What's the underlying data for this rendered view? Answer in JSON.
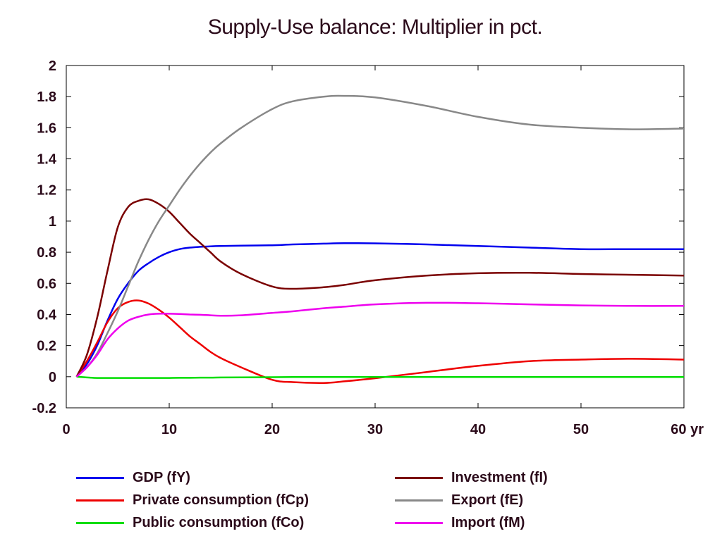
{
  "chart_data": {
    "type": "line",
    "title": "Supply-Use balance: Multiplier in pct.",
    "xlabel": "",
    "ylabel": "",
    "x_unit": "yr",
    "xlim": [
      0,
      60
    ],
    "ylim": [
      -0.2,
      2
    ],
    "x_ticks": [
      "0",
      "10",
      "20",
      "30",
      "40",
      "50",
      "60 yr"
    ],
    "y_ticks": [
      "2",
      "1.8",
      "1.6",
      "1.4",
      "1.2",
      "1",
      "0.8",
      "0.6",
      "0.4",
      "0.2",
      "0",
      "-0.2"
    ],
    "grid": false,
    "legend_position": "bottom",
    "x": [
      1,
      2,
      3,
      4,
      5,
      6,
      7,
      8,
      9,
      10,
      11,
      12,
      13,
      14,
      15,
      17,
      20,
      22,
      25,
      27,
      30,
      35,
      40,
      45,
      50,
      55,
      60
    ],
    "series": [
      {
        "name": "GDP (fY)",
        "color": "#0000ee",
        "values": [
          0.0,
          0.08,
          0.2,
          0.36,
          0.5,
          0.6,
          0.68,
          0.73,
          0.77,
          0.8,
          0.82,
          0.83,
          0.835,
          0.838,
          0.84,
          0.842,
          0.845,
          0.85,
          0.855,
          0.858,
          0.857,
          0.85,
          0.84,
          0.83,
          0.82,
          0.82,
          0.82
        ]
      },
      {
        "name": "Private consumption (fCp)",
        "color": "#ee0000",
        "values": [
          0.0,
          0.1,
          0.22,
          0.35,
          0.44,
          0.48,
          0.49,
          0.47,
          0.43,
          0.38,
          0.32,
          0.26,
          0.21,
          0.16,
          0.12,
          0.06,
          -0.02,
          -0.035,
          -0.04,
          -0.03,
          -0.01,
          0.03,
          0.07,
          0.1,
          0.11,
          0.115,
          0.11
        ]
      },
      {
        "name": "Public consumption (fCo)",
        "color": "#00dd00",
        "values": [
          0.0,
          -0.005,
          -0.008,
          -0.008,
          -0.008,
          -0.008,
          -0.008,
          -0.008,
          -0.008,
          -0.008,
          -0.007,
          -0.007,
          -0.006,
          -0.006,
          -0.005,
          -0.004,
          -0.003,
          -0.002,
          -0.002,
          -0.002,
          -0.002,
          -0.002,
          -0.002,
          -0.002,
          -0.002,
          -0.002,
          -0.002
        ]
      },
      {
        "name": "Investment (fI)",
        "color": "#7a0000",
        "values": [
          0.0,
          0.14,
          0.38,
          0.68,
          0.96,
          1.09,
          1.13,
          1.14,
          1.11,
          1.06,
          0.99,
          0.92,
          0.86,
          0.8,
          0.74,
          0.66,
          0.58,
          0.565,
          0.575,
          0.59,
          0.62,
          0.65,
          0.665,
          0.668,
          0.66,
          0.655,
          0.65
        ]
      },
      {
        "name": "Export (fE)",
        "color": "#888888",
        "values": [
          0.0,
          0.06,
          0.15,
          0.28,
          0.42,
          0.58,
          0.74,
          0.88,
          1.0,
          1.1,
          1.2,
          1.29,
          1.37,
          1.44,
          1.5,
          1.6,
          1.72,
          1.77,
          1.8,
          1.805,
          1.795,
          1.74,
          1.67,
          1.62,
          1.6,
          1.59,
          1.595
        ]
      },
      {
        "name": "Import (fM)",
        "color": "#ee00ee",
        "values": [
          0.0,
          0.06,
          0.14,
          0.24,
          0.31,
          0.36,
          0.385,
          0.4,
          0.405,
          0.405,
          0.403,
          0.4,
          0.398,
          0.395,
          0.392,
          0.395,
          0.41,
          0.42,
          0.44,
          0.45,
          0.465,
          0.475,
          0.472,
          0.465,
          0.458,
          0.455,
          0.455
        ]
      }
    ]
  },
  "legend": {
    "items": [
      {
        "label": "GDP (fY)",
        "color": "#0000ee"
      },
      {
        "label": "Private consumption (fCp)",
        "color": "#ee0000"
      },
      {
        "label": "Public consumption (fCo)",
        "color": "#00dd00"
      },
      {
        "label": "Investment (fI)",
        "color": "#7a0000"
      },
      {
        "label": "Export (fE)",
        "color": "#888888"
      },
      {
        "label": "Import (fM)",
        "color": "#ee00ee"
      }
    ]
  }
}
